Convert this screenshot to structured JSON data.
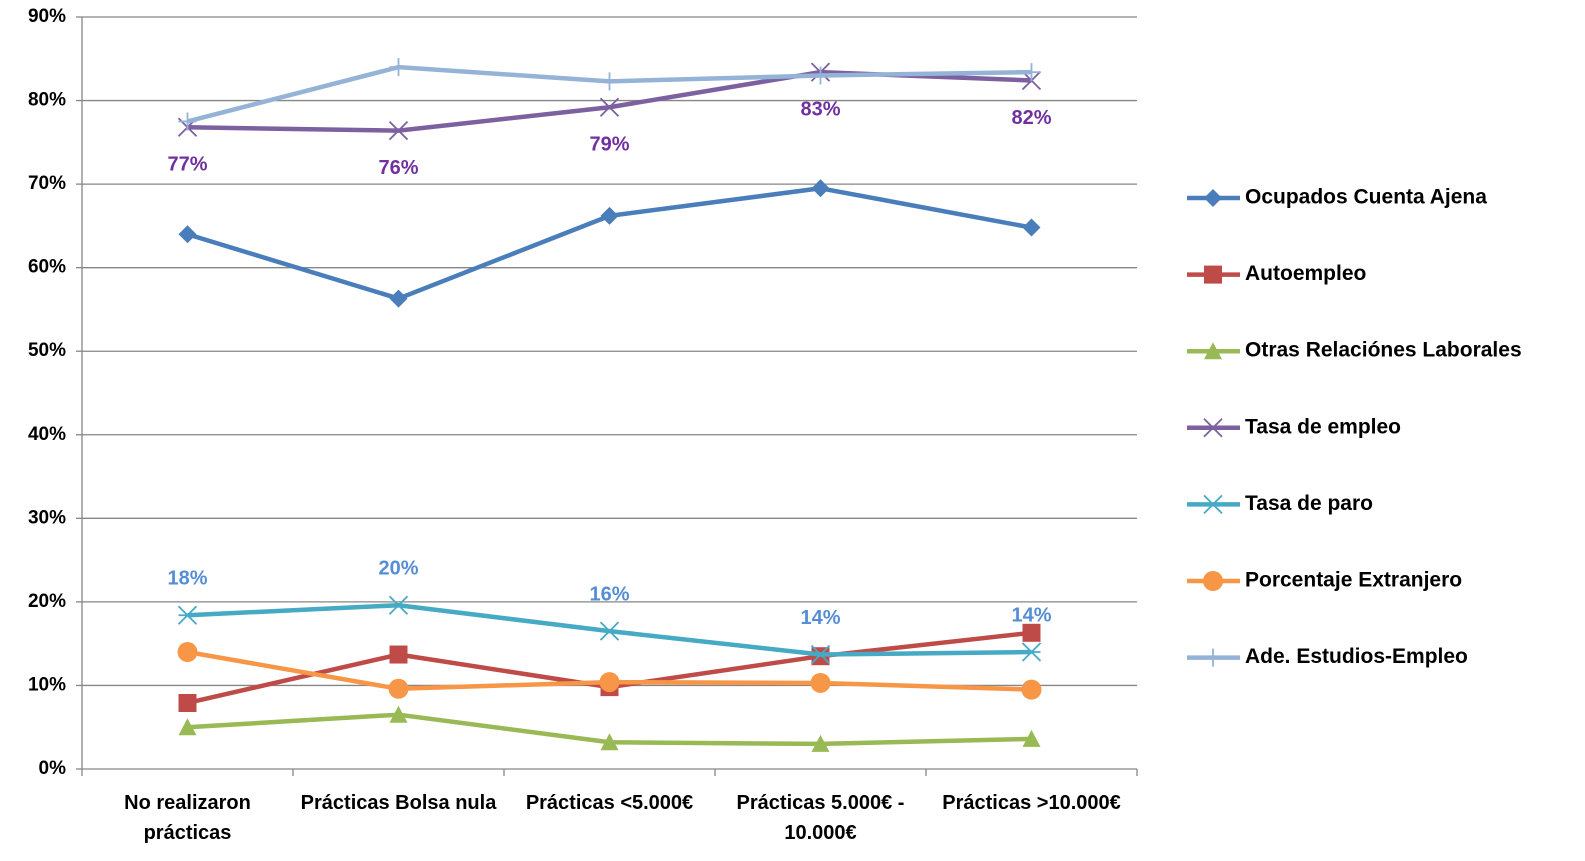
{
  "chart_data": {
    "type": "line",
    "categories": [
      "No realizaron prácticas",
      "Prácticas Bolsa nula",
      "Prácticas <5.000€",
      "Prácticas 5.000€ - 10.000€",
      "Prácticas >10.000€"
    ],
    "series": [
      {
        "name": "Ocupados Cuenta Ajena",
        "color": "#4a7ebb",
        "marker": "diamond",
        "values": [
          64.0,
          56.3,
          66.2,
          69.5,
          64.8
        ]
      },
      {
        "name": "Autoempleo",
        "color": "#be4b48",
        "marker": "square",
        "values": [
          7.9,
          13.7,
          9.8,
          13.5,
          16.3
        ]
      },
      {
        "name": "Otras Relaciónes Laborales",
        "color": "#98b954",
        "marker": "triangle",
        "values": [
          5.0,
          6.5,
          3.2,
          3.0,
          3.6
        ]
      },
      {
        "name": "Tasa de empleo",
        "color": "#7d60a0",
        "marker": "x",
        "values": [
          76.8,
          76.4,
          79.2,
          83.4,
          82.4
        ],
        "value_labels": [
          "77%",
          "76%",
          "79%",
          "83%",
          "82%"
        ],
        "label_color": "#7030a0",
        "label_position": "below"
      },
      {
        "name": "Tasa de paro",
        "color": "#46aac5",
        "marker": "star",
        "values": [
          18.4,
          19.6,
          16.5,
          13.7,
          14.0
        ],
        "value_labels": [
          "18%",
          "20%",
          "16%",
          "14%",
          "14%"
        ],
        "label_color": "#558ed5",
        "label_position": "above"
      },
      {
        "name": "Porcentaje Extranjero",
        "color": "#f79646",
        "marker": "circle",
        "values": [
          14.0,
          9.6,
          10.4,
          10.3,
          9.5
        ]
      },
      {
        "name": "Ade. Estudios-Empleo",
        "color": "#95b3d7",
        "marker": "plus",
        "values": [
          77.5,
          84.0,
          82.3,
          83.0,
          83.4
        ]
      }
    ],
    "ylim": [
      0,
      90
    ],
    "yticks": [
      {
        "value": 0,
        "label": "0%"
      },
      {
        "value": 10,
        "label": "10%"
      },
      {
        "value": 20,
        "label": "20%"
      },
      {
        "value": 30,
        "label": "30%"
      },
      {
        "value": 40,
        "label": "40%"
      },
      {
        "value": 50,
        "label": "50%"
      },
      {
        "value": 60,
        "label": "60%"
      },
      {
        "value": 70,
        "label": "70%"
      },
      {
        "value": 80,
        "label": "80%"
      },
      {
        "value": 90,
        "label": "90%"
      }
    ],
    "grid": true,
    "legend": "right"
  }
}
